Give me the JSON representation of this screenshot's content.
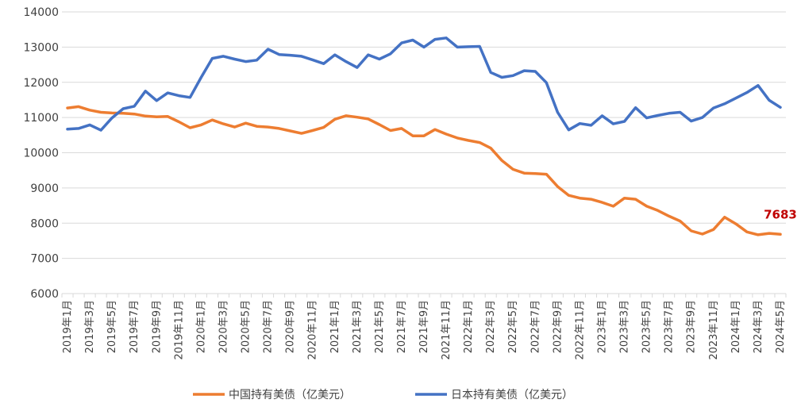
{
  "chart_data": {
    "type": "line",
    "title": "",
    "xlabel": "",
    "ylabel": "",
    "ylim": [
      6000,
      14000
    ],
    "yticks": [
      6000,
      7000,
      8000,
      9000,
      10000,
      11000,
      12000,
      13000,
      14000
    ],
    "grid": true,
    "legend_position": "bottom",
    "x": [
      "2019年1月",
      "2019年2月",
      "2019年3月",
      "2019年4月",
      "2019年5月",
      "2019年6月",
      "2019年7月",
      "2019年8月",
      "2019年9月",
      "2019年10月",
      "2019年11月",
      "2019年12月",
      "2020年1月",
      "2020年2月",
      "2020年3月",
      "2020年4月",
      "2020年5月",
      "2020年6月",
      "2020年7月",
      "2020年8月",
      "2020年9月",
      "2020年10月",
      "2020年11月",
      "2020年12月",
      "2021年1月",
      "2021年2月",
      "2021年3月",
      "2021年4月",
      "2021年5月",
      "2021年6月",
      "2021年7月",
      "2021年8月",
      "2021年9月",
      "2021年10月",
      "2021年11月",
      "2021年12月",
      "2022年1月",
      "2022年2月",
      "2022年3月",
      "2022年4月",
      "2022年5月",
      "2022年6月",
      "2022年7月",
      "2022年8月",
      "2022年9月",
      "2022年10月",
      "2022年11月",
      "2022年12月",
      "2023年1月",
      "2023年2月",
      "2023年3月",
      "2023年4月",
      "2023年5月",
      "2023年6月",
      "2023年7月",
      "2023年8月",
      "2023年9月",
      "2023年10月",
      "2023年11月",
      "2023年12月",
      "2024年1月",
      "2024年2月",
      "2024年3月",
      "2024年4月",
      "2024年5月"
    ],
    "xtick_labels": [
      "2019年1月",
      "2019年3月",
      "2019年5月",
      "2019年7月",
      "2019年9月",
      "2019年11月",
      "2020年1月",
      "2020年3月",
      "2020年5月",
      "2020年7月",
      "2020年9月",
      "2020年11月",
      "2021年1月",
      "2021年3月",
      "2021年5月",
      "2021年7月",
      "2021年9月",
      "2021年11月",
      "2022年1月",
      "2022年3月",
      "2022年5月",
      "2022年7月",
      "2022年9月",
      "2022年11月",
      "2023年1月",
      "2023年3月",
      "2023年5月",
      "2023年7月",
      "2023年9月",
      "2023年11月",
      "2024年1月",
      "2024年3月",
      "2024年5月"
    ],
    "series": [
      {
        "name": "中国持有美债（亿美元）",
        "color": "#ed7d31",
        "values": [
          11270,
          11310,
          11210,
          11150,
          11130,
          11120,
          11100,
          11040,
          11020,
          11030,
          10880,
          10710,
          10790,
          10930,
          10820,
          10730,
          10840,
          10750,
          10730,
          10690,
          10620,
          10550,
          10630,
          10720,
          10950,
          11050,
          11010,
          10960,
          10800,
          10630,
          10690,
          10480,
          10480,
          10660,
          10530,
          10420,
          10350,
          10290,
          10130,
          9780,
          9530,
          9420,
          9410,
          9390,
          9040,
          8790,
          8710,
          8680,
          8590,
          8480,
          8710,
          8680,
          8480,
          8360,
          8200,
          8060,
          7780,
          7690,
          7820,
          8170,
          7980,
          7750,
          7670,
          7710,
          7683
        ]
      },
      {
        "name": "日本持有美债（亿美元）",
        "color": "#4472c4",
        "values": [
          10670,
          10690,
          10790,
          10640,
          10990,
          11250,
          11320,
          11750,
          11480,
          11700,
          11620,
          11570,
          12140,
          12680,
          12740,
          12660,
          12590,
          12630,
          12940,
          12790,
          12770,
          12740,
          12640,
          12530,
          12780,
          12590,
          12420,
          12780,
          12660,
          12810,
          13120,
          13200,
          13000,
          13220,
          13260,
          13000,
          13010,
          13020,
          12280,
          12140,
          12190,
          12330,
          12310,
          11990,
          11150,
          10650,
          10830,
          10780,
          11050,
          10820,
          10890,
          11280,
          10990,
          11060,
          11120,
          11150,
          10900,
          11000,
          11270,
          11390,
          11550,
          11710,
          11910,
          11490,
          11290
        ]
      }
    ],
    "annotations": [
      {
        "series": 0,
        "index": 64,
        "text": "7683"
      }
    ]
  }
}
